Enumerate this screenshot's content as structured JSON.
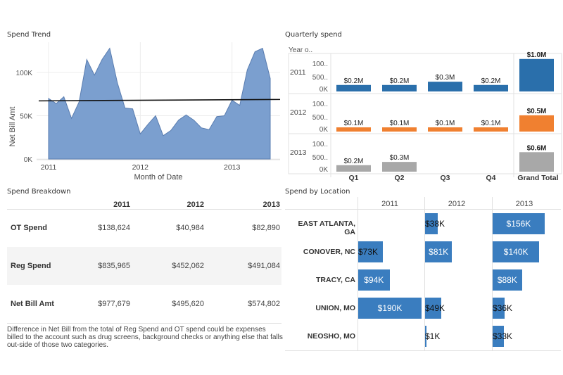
{
  "spend_trend": {
    "title": "Spend Trend",
    "ylabel": "Net Bill Amt",
    "xlabel": "Month of Date",
    "y_ticks": [
      "0K",
      "50K",
      "100K"
    ],
    "x_ticks": [
      "2011",
      "2012",
      "2013"
    ],
    "fill_color": "#7b9fcf",
    "line_color": "#5a7db0"
  },
  "quarterly": {
    "title": "Quarterly spend",
    "row_header": "Year o..",
    "y_ticks": [
      "0K",
      "500..",
      "100.."
    ],
    "columns": [
      "Q1",
      "Q2",
      "Q3",
      "Q4",
      "Grand Total"
    ],
    "rows": [
      {
        "year": "2011",
        "color": "#2a6fab",
        "labels": [
          "$0.2M",
          "$0.2M",
          "$0.3M",
          "$0.2M",
          "$1.0M"
        ]
      },
      {
        "year": "2012",
        "color": "#f08030",
        "labels": [
          "$0.1M",
          "$0.1M",
          "$0.1M",
          "$0.1M",
          "$0.5M"
        ]
      },
      {
        "year": "2013",
        "color": "#a8a8a8",
        "labels": [
          "$0.2M",
          "$0.3M",
          "",
          "",
          "$0.6M"
        ]
      }
    ]
  },
  "breakdown": {
    "title": "Spend Breakdown",
    "headers": [
      "2011",
      "2012",
      "2013"
    ],
    "rows": [
      {
        "label": "OT Spend",
        "values": [
          "$138,624",
          "$40,984",
          "$82,890"
        ]
      },
      {
        "label": "Reg Spend",
        "values": [
          "$835,965",
          "$452,062",
          "$491,084"
        ]
      },
      {
        "label": "Net Bill Amt",
        "values": [
          "$977,679",
          "$495,620",
          "$574,802"
        ]
      }
    ],
    "note": "Difference in Net Bill from the total of Reg Spend and OT spend could be expenses billed to the account such as drug screens, background checks or anything else that falls out-side of those two categories."
  },
  "location": {
    "title": "Spend by Location",
    "years": [
      "2011",
      "2012",
      "2013"
    ],
    "bar_color": "#3a7dbf",
    "rows": [
      {
        "label": "EAST ATLANTA, GA",
        "values": [
          null,
          38,
          156
        ],
        "labels": [
          "",
          "$38K",
          "$156K"
        ]
      },
      {
        "label": "CONOVER, NC",
        "values": [
          73,
          81,
          140
        ],
        "labels": [
          "$73K",
          "$81K",
          "$140K"
        ]
      },
      {
        "label": "TRACY, CA",
        "values": [
          94,
          null,
          88
        ],
        "labels": [
          "$94K",
          "",
          "$88K"
        ]
      },
      {
        "label": "UNION, MO",
        "values": [
          190,
          49,
          36
        ],
        "labels": [
          "$190K",
          "$49K",
          "$36K"
        ]
      },
      {
        "label": "NEOSHO, MO",
        "values": [
          null,
          1,
          33
        ],
        "labels": [
          "",
          "$1K",
          "$33K"
        ]
      }
    ]
  },
  "chart_data": [
    {
      "type": "area",
      "title": "Spend Trend",
      "xlabel": "Month of Date",
      "ylabel": "Net Bill Amt",
      "ylim": [
        0,
        135000
      ],
      "x_ticks": [
        "2011",
        "2012",
        "2013"
      ],
      "x": [
        "2011-01",
        "2011-02",
        "2011-03",
        "2011-04",
        "2011-05",
        "2011-06",
        "2011-07",
        "2011-08",
        "2011-09",
        "2011-10",
        "2011-11",
        "2011-12",
        "2012-01",
        "2012-02",
        "2012-03",
        "2012-04",
        "2012-05",
        "2012-06",
        "2012-07",
        "2012-08",
        "2012-09",
        "2012-10",
        "2012-11",
        "2012-12",
        "2013-01",
        "2013-02",
        "2013-03",
        "2013-04",
        "2013-05",
        "2013-06"
      ],
      "values": [
        70000,
        64000,
        72000,
        47000,
        66000,
        115000,
        97000,
        115000,
        128000,
        88000,
        59000,
        58000,
        29000,
        40000,
        50000,
        27000,
        33000,
        45000,
        51000,
        45000,
        36000,
        34000,
        49000,
        50000,
        68000,
        62000,
        103000,
        124000,
        128000,
        93000
      ],
      "reference_line": {
        "value": 68000,
        "label": "trend"
      }
    },
    {
      "type": "bar",
      "title": "Quarterly spend",
      "categories": [
        "Q1",
        "Q2",
        "Q3",
        "Q4",
        "Grand Total"
      ],
      "unit": "$M",
      "ylim": [
        0,
        1.0
      ],
      "series": [
        {
          "name": "2011",
          "values": [
            0.2,
            0.2,
            0.3,
            0.2,
            1.0
          ]
        },
        {
          "name": "2012",
          "values": [
            0.1,
            0.1,
            0.1,
            0.1,
            0.5
          ]
        },
        {
          "name": "2013",
          "values": [
            0.2,
            0.3,
            null,
            null,
            0.6
          ]
        }
      ]
    },
    {
      "type": "table",
      "title": "Spend Breakdown",
      "columns": [
        "2011",
        "2012",
        "2013"
      ],
      "rows": [
        {
          "label": "OT Spend",
          "values": [
            138624,
            40984,
            82890
          ]
        },
        {
          "label": "Reg Spend",
          "values": [
            835965,
            452062,
            491084
          ]
        },
        {
          "label": "Net Bill Amt",
          "values": [
            977679,
            495620,
            574802
          ]
        }
      ]
    },
    {
      "type": "bar",
      "title": "Spend by Location",
      "orientation": "horizontal",
      "unit": "$K",
      "categories": [
        "EAST ATLANTA, GA",
        "CONOVER, NC",
        "TRACY, CA",
        "UNION, MO",
        "NEOSHO, MO"
      ],
      "series": [
        {
          "name": "2011",
          "values": [
            null,
            73,
            94,
            190,
            null
          ]
        },
        {
          "name": "2012",
          "values": [
            38,
            81,
            null,
            49,
            1
          ]
        },
        {
          "name": "2013",
          "values": [
            156,
            140,
            88,
            36,
            33
          ]
        }
      ]
    }
  ]
}
